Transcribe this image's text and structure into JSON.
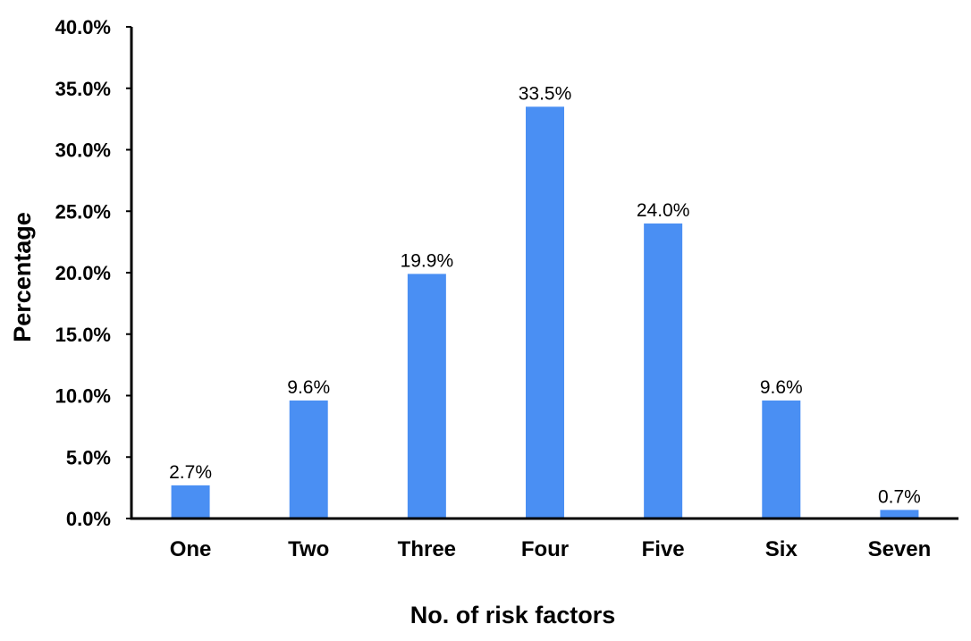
{
  "chart_data": {
    "type": "bar",
    "title": "",
    "xlabel": "No. of risk factors",
    "ylabel": "Percentage",
    "categories": [
      "One",
      "Two",
      "Three",
      "Four",
      "Five",
      "Six",
      "Seven"
    ],
    "values": [
      2.7,
      9.6,
      19.9,
      33.5,
      24.0,
      9.6,
      0.7
    ],
    "value_labels": [
      "2.7%",
      "9.6%",
      "19.9%",
      "33.5%",
      "24.0%",
      "9.6%",
      "0.7%"
    ],
    "ylim": [
      0,
      40
    ],
    "y_ticks": [
      0,
      5,
      10,
      15,
      20,
      25,
      30,
      35,
      40
    ],
    "y_tick_labels": [
      "0.0%",
      "5.0%",
      "10.0%",
      "15.0%",
      "20.0%",
      "25.0%",
      "30.0%",
      "35.0%",
      "40.0%"
    ],
    "bar_color": "#4a8ff3",
    "grid": false,
    "legend": "none"
  }
}
